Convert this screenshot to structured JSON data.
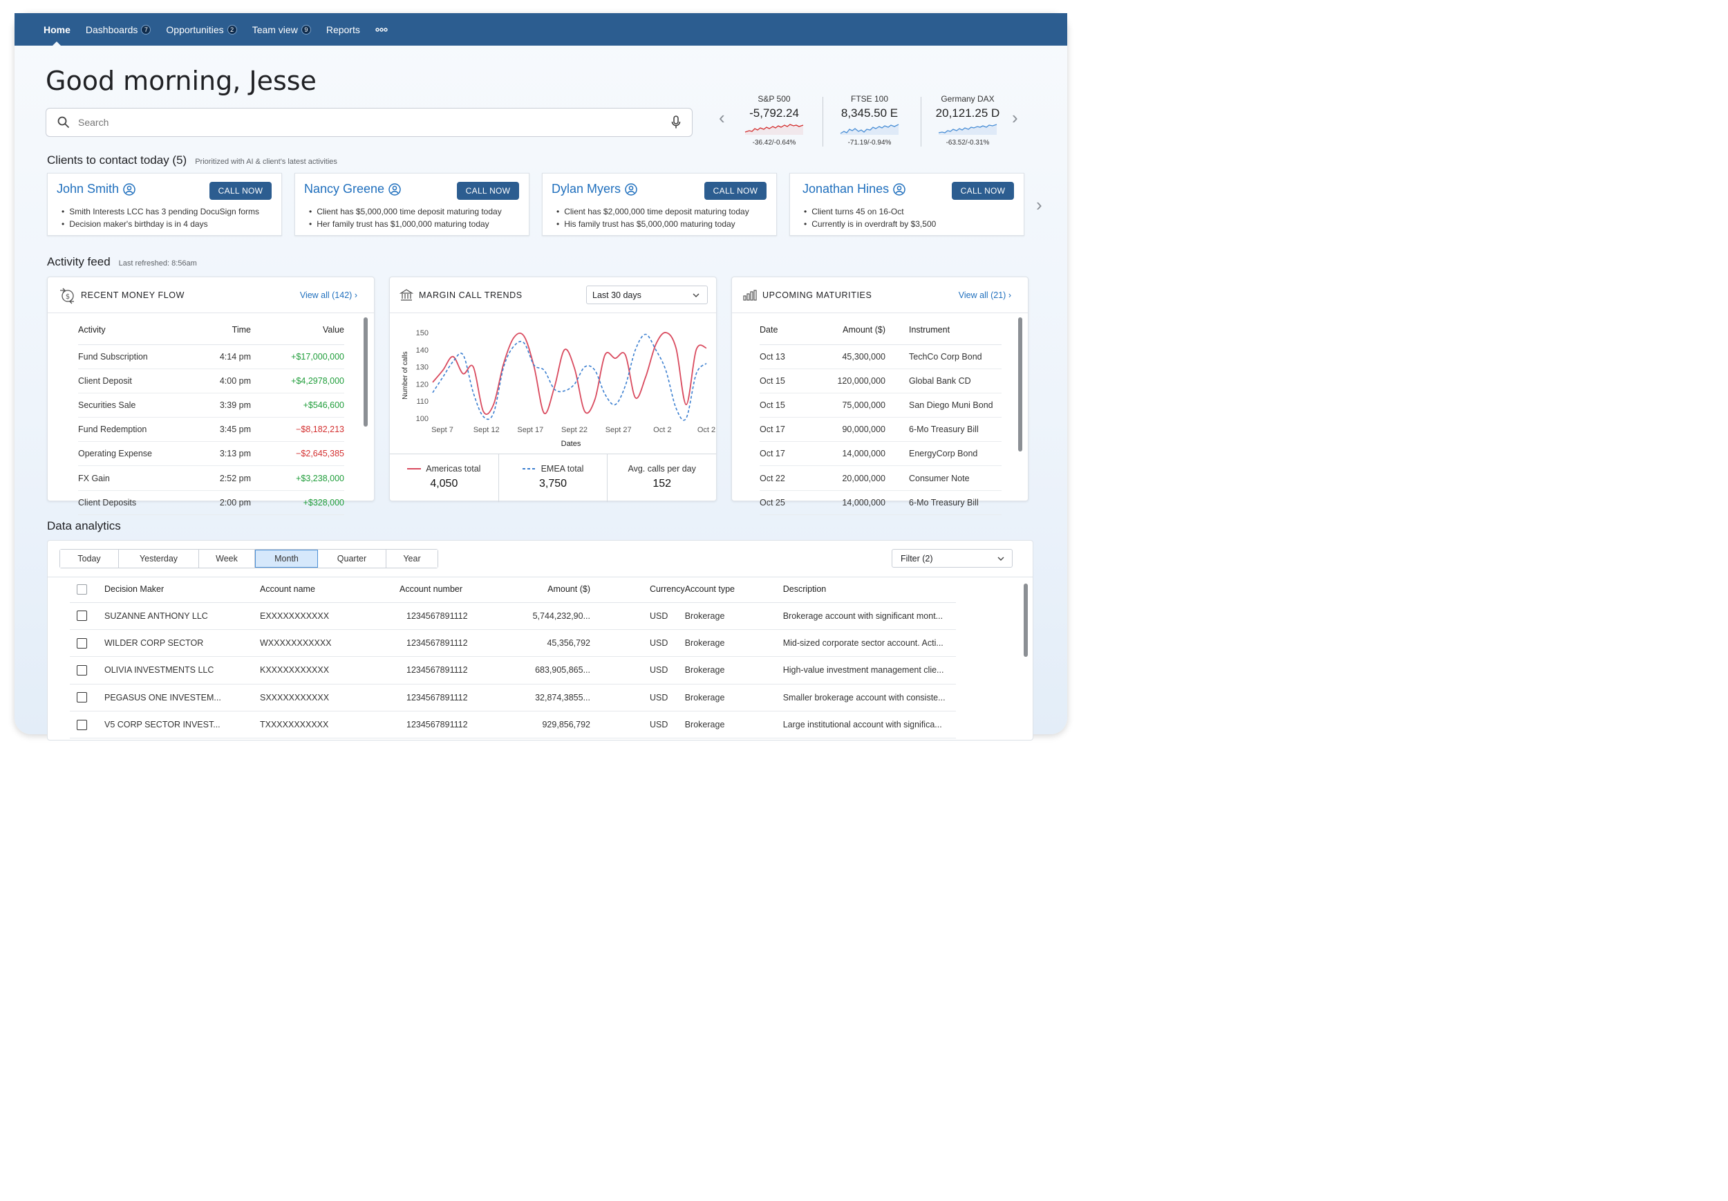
{
  "nav": {
    "items": [
      {
        "label": "Home",
        "badge": ""
      },
      {
        "label": "Dashboards",
        "badge": "7"
      },
      {
        "label": "Opportunities",
        "badge": "2"
      },
      {
        "label": "Team view",
        "badge": "9"
      },
      {
        "label": "Reports",
        "badge": ""
      }
    ],
    "more_icon": "more-horizontal-icon"
  },
  "greeting": "Good morning, Jesse",
  "search": {
    "placeholder": "Search"
  },
  "tickers": [
    {
      "name": "S&P 500",
      "value": "-5,792.24",
      "change": "-36.42/-0.64%",
      "color": "#d32f2f"
    },
    {
      "name": "FTSE 100",
      "value": "8,345.50 E",
      "change": "-71.19/-0.94%",
      "color": "#4a8fd6"
    },
    {
      "name": "Germany DAX",
      "value": "20,121.25 D",
      "change": "-63.52/-0.31%",
      "color": "#4a8fd6"
    }
  ],
  "clients": {
    "title": "Clients to contact today (5)",
    "subtitle": "Prioritized with AI & client's latest activities",
    "call_label": "CALL NOW",
    "cards": [
      {
        "name": "John Smith",
        "notes": [
          "Smith Interests LCC has 3 pending DocuSign forms",
          "Decision maker's birthday is in 4 days"
        ]
      },
      {
        "name": "Nancy Greene",
        "notes": [
          "Client has $5,000,000 time deposit maturing today",
          "Her family trust has $1,000,000 maturing today"
        ]
      },
      {
        "name": "Dylan Myers",
        "notes": [
          "Client has $2,000,000 time deposit maturing today",
          "His family trust has $5,000,000 maturing today"
        ]
      },
      {
        "name": "Jonathan Hines",
        "notes": [
          "Client turns 45 on 16-Oct",
          "Currently is in overdraft by $3,500"
        ]
      }
    ]
  },
  "activity": {
    "title": "Activity feed",
    "subtitle": "Last refreshed: 8:56am"
  },
  "money_flow": {
    "title": "RECENT MONEY FLOW",
    "view_all": "View all (142)",
    "columns": [
      "Activity",
      "Time",
      "Value"
    ],
    "rows": [
      {
        "activity": "Fund Subscription",
        "time": "4:14 pm",
        "value": "+$17,000,000",
        "sign": "pos"
      },
      {
        "activity": "Client Deposit",
        "time": "4:00 pm",
        "value": "+$4,2978,000",
        "sign": "pos"
      },
      {
        "activity": "Securities Sale",
        "time": "3:39 pm",
        "value": "+$546,600",
        "sign": "pos"
      },
      {
        "activity": "Fund Redemption",
        "time": "3:45 pm",
        "value": "−$8,182,213",
        "sign": "neg"
      },
      {
        "activity": "Operating Expense",
        "time": "3:13 pm",
        "value": "−$2,645,385",
        "sign": "neg"
      },
      {
        "activity": "FX Gain",
        "time": "2:52 pm",
        "value": "+$3,238,000",
        "sign": "pos"
      },
      {
        "activity": "Client Deposits",
        "time": "2:00 pm",
        "value": "+$328,000",
        "sign": "pos"
      }
    ]
  },
  "margin": {
    "title": "MARGIN CALL TRENDS",
    "range": "Last 30 days",
    "legend": [
      {
        "name": "Americas total",
        "value": "4,050"
      },
      {
        "name": "EMEA total",
        "value": "3,750"
      },
      {
        "name": "Avg. calls per day",
        "value": "152"
      }
    ]
  },
  "chart_data": {
    "type": "line",
    "xlabel": "Dates",
    "ylabel": "Number of calls",
    "ylim": [
      100,
      150
    ],
    "yticks": [
      100,
      110,
      120,
      130,
      140,
      150
    ],
    "xticks": [
      "Sept 7",
      "Sept 12",
      "Sept 17",
      "Sept 22",
      "Sept 27",
      "Oct 2",
      "Oct 2"
    ],
    "x": [
      0,
      1,
      2,
      3,
      4,
      5,
      6,
      7,
      8,
      9,
      10,
      11,
      12,
      13,
      14,
      15,
      16,
      17,
      18,
      19,
      20,
      21,
      22,
      23,
      24,
      25,
      26,
      27
    ],
    "series": [
      {
        "name": "Americas total",
        "color": "#d94a5e",
        "style": "solid",
        "values": [
          121,
          128,
          136,
          126,
          130,
          104,
          108,
          132,
          147,
          148,
          130,
          103,
          118,
          140,
          129,
          104,
          111,
          137,
          135,
          137,
          112,
          124,
          143,
          150,
          141,
          108,
          140,
          141
        ]
      },
      {
        "name": "EMEA total",
        "color": "#3b7fd0",
        "style": "dashed",
        "values": [
          115,
          124,
          133,
          137,
          115,
          101,
          103,
          130,
          142,
          144,
          131,
          128,
          117,
          116,
          120,
          130,
          128,
          114,
          108,
          119,
          140,
          149,
          140,
          128,
          106,
          100,
          126,
          132
        ]
      }
    ],
    "grid": false,
    "legend": "bottom"
  },
  "maturities": {
    "title": "UPCOMING MATURITIES",
    "view_all": "View all (21)",
    "columns": [
      "Date",
      "Amount ($)",
      "Instrument"
    ],
    "rows": [
      {
        "date": "Oct 13",
        "amount": "45,300,000",
        "instrument": "TechCo Corp Bond"
      },
      {
        "date": "Oct 15",
        "amount": "120,000,000",
        "instrument": "Global Bank CD"
      },
      {
        "date": "Oct 15",
        "amount": "75,000,000",
        "instrument": "San Diego Muni Bond"
      },
      {
        "date": "Oct 17",
        "amount": "90,000,000",
        "instrument": "6-Mo Treasury Bill"
      },
      {
        "date": "Oct 17",
        "amount": "14,000,000",
        "instrument": "EnergyCorp Bond"
      },
      {
        "date": "Oct 22",
        "amount": "20,000,000",
        "instrument": "Consumer Note"
      },
      {
        "date": "Oct 25",
        "amount": "14,000,000",
        "instrument": "6-Mo Treasury Bill"
      }
    ]
  },
  "analytics": {
    "title": "Data analytics",
    "periods": [
      "Today",
      "Yesterday",
      "Week",
      "Month",
      "Quarter",
      "Year"
    ],
    "selected_period": "Month",
    "filter": "Filter (2)",
    "columns": [
      "Decision Maker",
      "Account name",
      "Account number",
      "Amount ($)",
      "Currency",
      "Account type",
      "Description"
    ],
    "rows": [
      {
        "maker": "SUZANNE ANTHONY LLC",
        "account": "EXXXXXXXXXXX",
        "number": "1234567891112",
        "amount": "5,744,232,90...",
        "currency": "USD",
        "type": "Brokerage",
        "desc": "Brokerage account with significant mont..."
      },
      {
        "maker": "WILDER CORP SECTOR",
        "account": "WXXXXXXXXXXX",
        "number": "1234567891112",
        "amount": "45,356,792",
        "currency": "USD",
        "type": "Brokerage",
        "desc": "Mid-sized corporate sector account. Acti..."
      },
      {
        "maker": "OLIVIA INVESTMENTS LLC",
        "account": "KXXXXXXXXXXX",
        "number": "1234567891112",
        "amount": "683,905,865...",
        "currency": "USD",
        "type": "Brokerage",
        "desc": "High-value investment management clie..."
      },
      {
        "maker": "PEGASUS ONE INVESTEM...",
        "account": "SXXXXXXXXXXX",
        "number": "1234567891112",
        "amount": "32,874,3855...",
        "currency": "USD",
        "type": "Brokerage",
        "desc": "Smaller brokerage account with consiste..."
      },
      {
        "maker": "V5 CORP SECTOR INVEST...",
        "account": "TXXXXXXXXXXX",
        "number": "1234567891112",
        "amount": "929,856,792",
        "currency": "USD",
        "type": "Brokerage",
        "desc": "Large institutional account with significa..."
      }
    ]
  }
}
